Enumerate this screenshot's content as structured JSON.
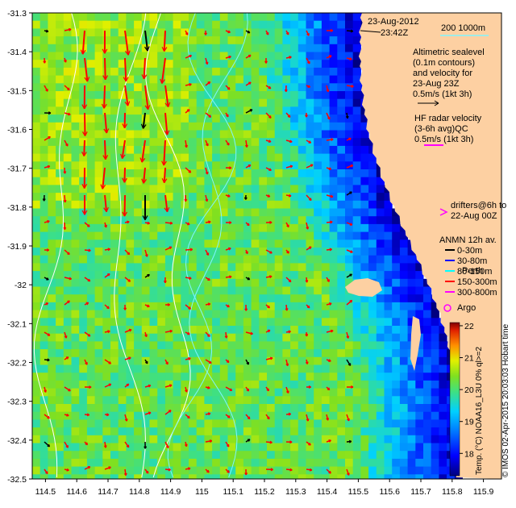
{
  "map": {
    "date_line1": "23-Aug-2012",
    "date_line2": "23:42Z",
    "contour_legend": "200  1000m",
    "altimetry_lines": [
      "Altimetric sealevel",
      "(0.1m contours)",
      "and velocity for",
      "23-Aug 23Z",
      "0.5m/s (1kt 3h)"
    ],
    "hf_lines": [
      "HF radar velocity",
      "(3-6h avg)QC",
      "0.5m/s (1kt 3h)"
    ],
    "drifters_lines": [
      "drifters@6h to",
      "22-Aug 00Z"
    ],
    "anmn": {
      "title": "ANMN 12h av.",
      "items": [
        {
          "label": "0-30m",
          "color": "#000000"
        },
        {
          "label": "30-80m",
          "color": "#0000ff"
        },
        {
          "label": "80-150m",
          "color": "#00ffff"
        },
        {
          "label": "150-300m",
          "color": "#ff0000"
        },
        {
          "label": "300-800m",
          "color": "#ff00ff"
        }
      ]
    },
    "place_label": "Perth",
    "argo_label": "Argo",
    "colorbar": {
      "ticks": [
        18,
        19,
        20,
        21,
        22
      ],
      "vmin": 17.3,
      "vmax": 22.1,
      "label": "Temp. (°C) NOAA16_L3U 0% ql>=2"
    },
    "credit": "© IMOS 02-Apr-2015 20:03:03 Hobart time",
    "x_ticks": [
      "114.5",
      "114.6",
      "114.7",
      "114.8",
      "114.9",
      "115",
      "115.1",
      "115.2",
      "115.3",
      "115.4",
      "115.5",
      "115.6",
      "115.7",
      "115.8",
      "115.9"
    ],
    "y_ticks": [
      "-31.3",
      "-31.4",
      "-31.5",
      "-31.6",
      "-31.7",
      "-31.8",
      "-31.9",
      "-32",
      "-32.1",
      "-32.2",
      "-32.3",
      "-32.4",
      "-32.5"
    ],
    "colors": {
      "land": "#fdd0a2",
      "ocean_warm": "#7fcf2e",
      "ocean_cold": "#00007f",
      "vector": "#ff0000",
      "contour_200": "#7ff5ff",
      "contour_1000": "#ffffff",
      "marker": "#ff00ff"
    }
  }
}
